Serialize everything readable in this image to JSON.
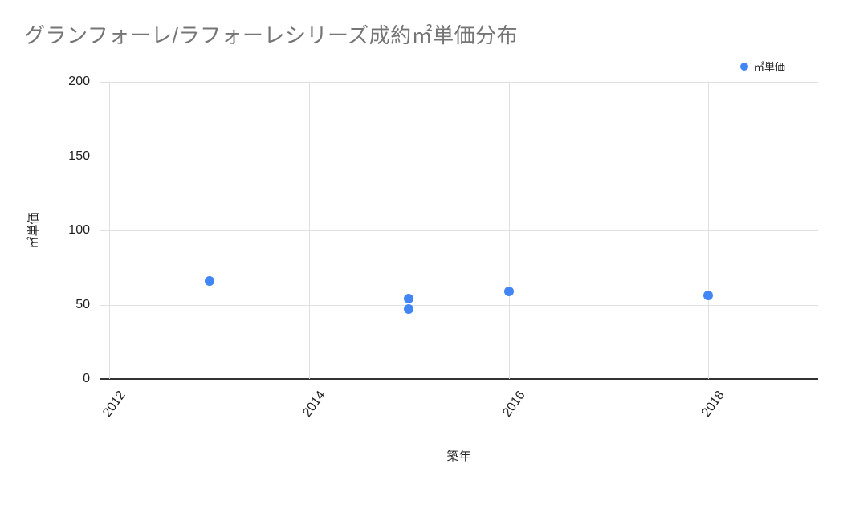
{
  "header": {
    "title": "グランフォーレ/ラフォーレシリーズ成約㎡単価分布"
  },
  "legend": {
    "items": [
      {
        "label": "㎡単価",
        "marker": "circle-icon",
        "color": "#4285f4"
      }
    ]
  },
  "chart_data": {
    "type": "scatter",
    "title": "グランフォーレ/ラフォーレシリーズ成約㎡単価分布",
    "xlabel": "築年",
    "ylabel": "㎡単価",
    "xlim": [
      2011.9,
      2019.1
    ],
    "ylim": [
      0,
      200
    ],
    "x_ticks": [
      2012,
      2014,
      2016,
      2018
    ],
    "y_ticks": [
      0,
      50,
      100,
      150,
      200
    ],
    "grid": true,
    "legend_position": "top-right",
    "series": [
      {
        "name": "㎡単価",
        "color": "#4285f4",
        "points": [
          {
            "x": 2013,
            "y": 66
          },
          {
            "x": 2015,
            "y": 54
          },
          {
            "x": 2015,
            "y": 47
          },
          {
            "x": 2016,
            "y": 59
          },
          {
            "x": 2018,
            "y": 56
          }
        ]
      }
    ]
  },
  "colors": {
    "background": "#ffffff",
    "accent": "#4285f4",
    "gridline": "#e0e0e0",
    "axis_line": "#333333",
    "title_text": "#757575",
    "tick_text": "#212121"
  }
}
